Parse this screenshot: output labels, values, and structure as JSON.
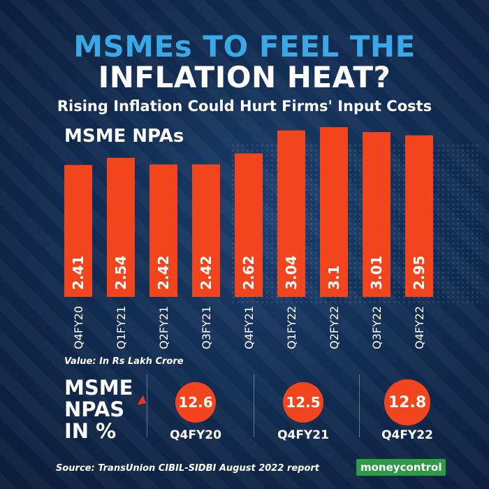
{
  "header": {
    "title_line1": "MSMEs TO FEEL THE",
    "title_line2": "INFLATION HEAT?",
    "subtitle": "Rising Inflation Could Hurt Firms' Input Costs"
  },
  "chart_label": "MSME NPAs",
  "value_note": "Value: In Rs Lakh Crore",
  "chart_data": {
    "type": "bar",
    "title": "MSME NPAs",
    "categories": [
      "Q4FY20",
      "Q1FY21",
      "Q2FY21",
      "Q3FY21",
      "Q4FY21",
      "Q1FY22",
      "Q2FY22",
      "Q3FY22",
      "Q4FY22"
    ],
    "values": [
      2.41,
      2.54,
      2.42,
      2.42,
      2.62,
      3.04,
      3.1,
      3.01,
      2.95
    ],
    "value_labels": [
      "2.41",
      "2.54",
      "2.42",
      "2.42",
      "2.62",
      "3.04",
      "3.1",
      "3.01",
      "2.95"
    ],
    "ylabel": "Value: In Rs Lakh Crore",
    "bar_color": "#f2441d",
    "grid": false,
    "legend": "none"
  },
  "npa_percent": {
    "label_lines": [
      "MSME",
      "NPAS",
      "IN %"
    ],
    "items": [
      {
        "value": "12.6",
        "period": "Q4FY20"
      },
      {
        "value": "12.5",
        "period": "Q4FY21"
      },
      {
        "value": "12.8",
        "period": "Q4FY22"
      }
    ]
  },
  "source": "Source: TransUnion CIBIL-SIDBI August 2022 report",
  "brand": "moneycontrol",
  "colors": {
    "accent_blue": "#3aa8e6",
    "bar_red": "#f2441d",
    "brand_green": "#2e9a46",
    "background": "#122c52"
  }
}
